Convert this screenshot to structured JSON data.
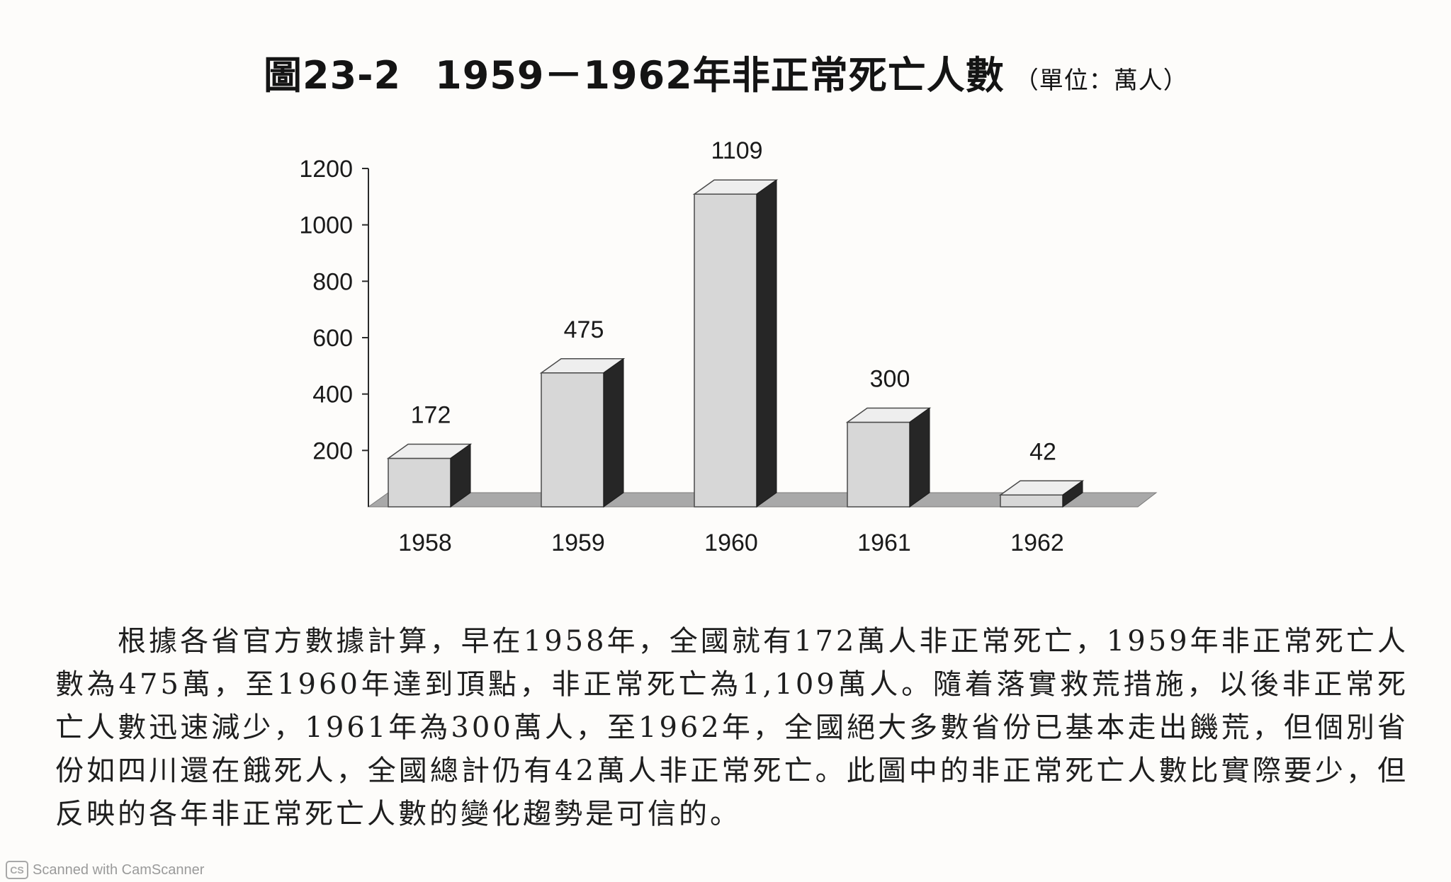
{
  "figure": {
    "number": "圖23-2",
    "title": "1959－1962年非正常死亡人數",
    "unit": "（單位：萬人）"
  },
  "chart_data": {
    "type": "bar",
    "style": "3d-column",
    "title": "1959－1962年非正常死亡人數",
    "unit": "萬人",
    "categories": [
      "1958",
      "1959",
      "1960",
      "1961",
      "1962"
    ],
    "values": [
      172,
      475,
      1109,
      300,
      42
    ],
    "data_labels": [
      "172",
      "475",
      "1109",
      "300",
      "42"
    ],
    "yticks": [
      "200",
      "400",
      "600",
      "800",
      "1000",
      "1200"
    ],
    "ylim": [
      0,
      1200
    ],
    "grid": false,
    "legend": "none",
    "colors": {
      "bar_front": "#d7d7d7",
      "bar_top": "#eeeeee",
      "bar_side": "#262626",
      "floor": "#a9a9a9",
      "axis": "#2a2a2a"
    }
  },
  "caption": "根據各省官方數據計算，早在1958年，全國就有172萬人非正常死亡，1959年非正常死亡人數為475萬，至1960年達到頂點，非正常死亡為1,109萬人。隨着落實救荒措施，以後非正常死亡人數迅速減少，1961年為300萬人，至1962年，全國絕大多數省份已基本走出饑荒，但個別省份如四川還在餓死人，全國總計仍有42萬人非正常死亡。此圖中的非正常死亡人數比實際要少，但反映的各年非正常死亡人數的變化趨勢是可信的。",
  "watermark": {
    "logo": "CS",
    "text": "Scanned with CamScanner"
  }
}
